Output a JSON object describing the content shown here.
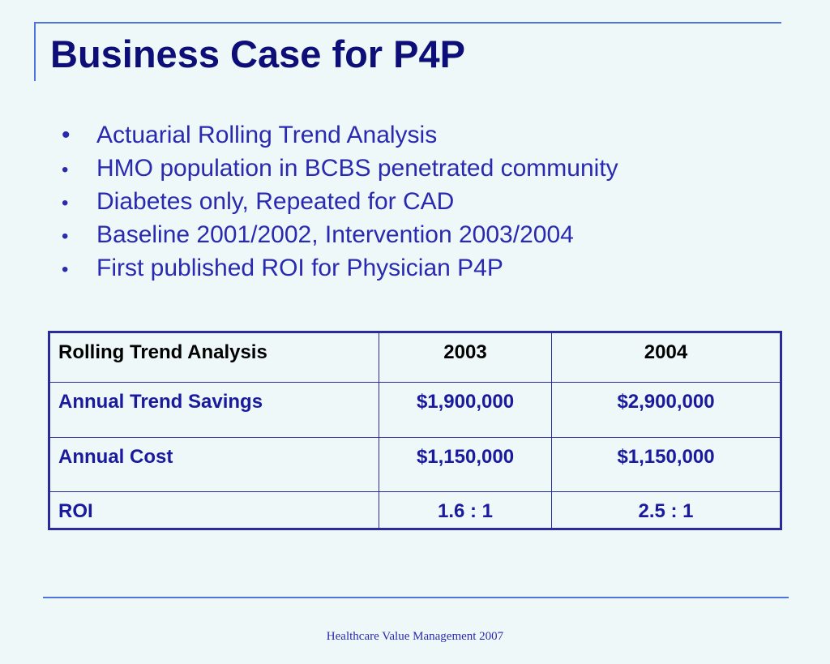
{
  "slide": {
    "title": "Business Case for P4P",
    "bullet_symbol": "•",
    "bullets": [
      "Actuarial Rolling Trend Analysis",
      "HMO population in BCBS penetrated community",
      "Diabetes only, Repeated for CAD",
      "Baseline 2001/2002, Intervention 2003/2004",
      "First published ROI for Physician P4P"
    ],
    "footer": "Healthcare Value Management 2007"
  },
  "table": {
    "header": [
      "Rolling Trend Analysis",
      "2003",
      "2004"
    ],
    "rows": [
      [
        "Annual Trend Savings",
        "$1,900,000",
        "$2,900,000"
      ],
      [
        "Annual Cost",
        "$1,150,000",
        "$1,150,000"
      ],
      [
        "ROI",
        "1.6 : 1",
        "2.5 : 1"
      ]
    ]
  },
  "colors": {
    "background": "#eef8f8",
    "title": "#0e0e78",
    "text": "#2a2ab0",
    "rule": "#4f74e0",
    "table_border": "#2b2ba0"
  }
}
